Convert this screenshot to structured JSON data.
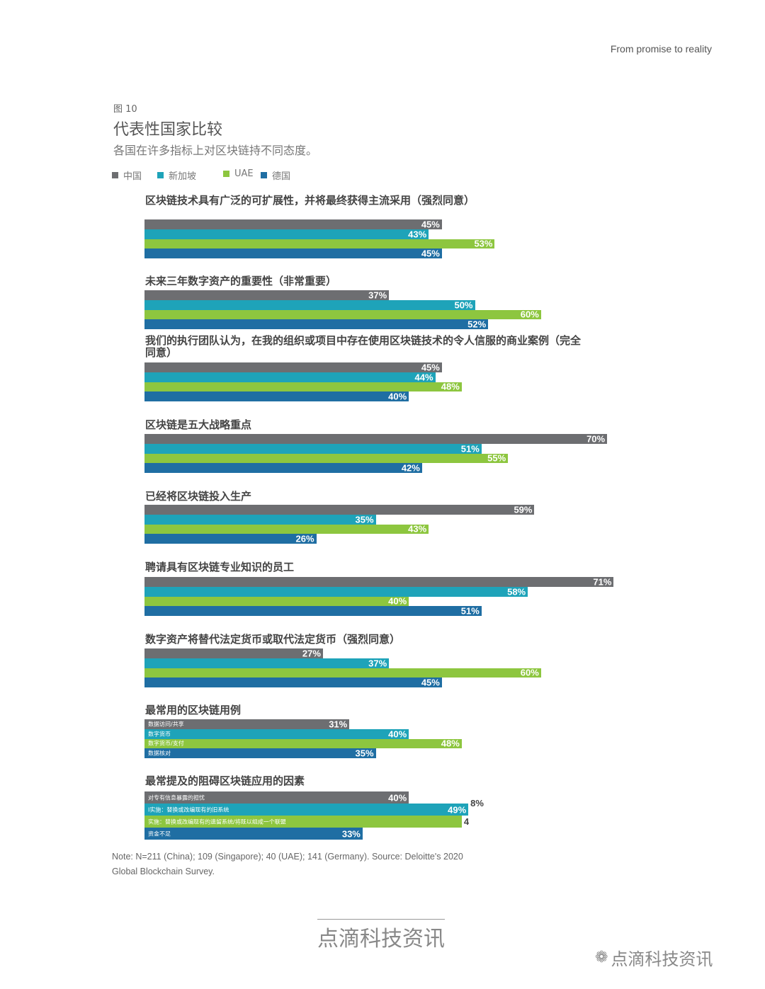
{
  "header": {
    "text": "From promise to reality"
  },
  "figure": {
    "label": "图 10",
    "title": "代表性国家比较",
    "subtitle": "各国在许多指标上对区块链持不同态度。"
  },
  "chart_data": {
    "type": "bar",
    "orientation": "horizontal",
    "unit": "%",
    "series": [
      {
        "name": "中国",
        "color": "#6d6e71"
      },
      {
        "name": "新加坡",
        "color": "#1ea3b9"
      },
      {
        "name": "UAE",
        "color": "#8dc63f"
      },
      {
        "name": "德国",
        "color": "#1f6ea3"
      }
    ],
    "groups": [
      {
        "title": "区块链技术具有广泛的可扩展性，并将最终获得主流采用（强烈同意）",
        "values": [
          45,
          43,
          53,
          45
        ]
      },
      {
        "title": "未来三年数字资产的重要性（非常重要）",
        "values": [
          37,
          50,
          60,
          52
        ]
      },
      {
        "title": "我们的执行团队认为，在我的组织或项目中存在使用区块链技术的令人信服的商业案例（完全同意）",
        "values": [
          45,
          44,
          48,
          40
        ]
      },
      {
        "title": "区块链是五大战略重点",
        "values": [
          70,
          51,
          55,
          42
        ]
      },
      {
        "title": "已经将区块链投入生产",
        "values": [
          59,
          35,
          43,
          26
        ]
      },
      {
        "title": "聘请具有区块链专业知识的员工",
        "values": [
          71,
          58,
          40,
          51
        ]
      },
      {
        "title": "数字资产将替代法定货币或取代法定货币（强烈同意）",
        "values": [
          27,
          37,
          60,
          45
        ]
      },
      {
        "title": "最常用的区块链用例",
        "values": [
          31,
          40,
          48,
          35
        ],
        "bar_labels": [
          "数据访问/共享",
          "数字货币",
          "数字货币/支付",
          "数据核对"
        ]
      },
      {
        "title": "最常提及的阻碍区块链应用的因素",
        "values": [
          40,
          49,
          48,
          33
        ],
        "value_labels": [
          "40%",
          "49%",
          "",
          "33%"
        ],
        "outside_labels": [
          "",
          "8%",
          "4",
          ""
        ],
        "bar_labels": [
          "对专有信息暴露的担忧",
          "I实施：替换或改编现有的旧系统",
          "实施：替换或改编现有的遗留系统/将既以组成一个联盟",
          "资金不足"
        ]
      }
    ]
  },
  "note": "Note: N=211 (China); 109 (Singapore); 40 (UAE); 141 (Germany). Source: Deloitte's 2020 Global Blockchain Survey.",
  "footer": {
    "brand": "点滴科技资讯",
    "wechat": "点滴科技资讯"
  }
}
